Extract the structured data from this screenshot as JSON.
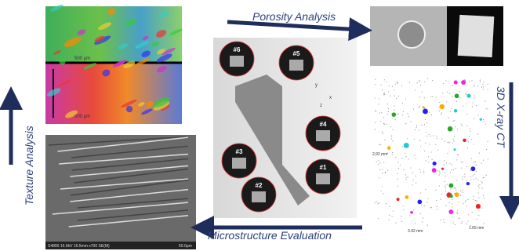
{
  "arrows": {
    "porosity": "Porosity Analysis",
    "ct": "3D X-ray CT",
    "microstructure": "Microstructure Evaluation",
    "texture": "Texture Analysis"
  },
  "ebsd": {
    "scale_top": "500 µm",
    "scale_bottom": "500 µm"
  },
  "sem": {
    "info": "S4800 15.0kV 16.5mm x700 SE(M)",
    "scale": "50.0µm"
  },
  "specimen": {
    "labels": [
      "#6",
      "#5",
      "#4",
      "#3",
      "#2",
      "#1"
    ],
    "axes": [
      "y",
      "x",
      "z"
    ]
  },
  "ct": {
    "dims": [
      "2.92 mm",
      "3.92 mm",
      "1.65 mm"
    ]
  }
}
